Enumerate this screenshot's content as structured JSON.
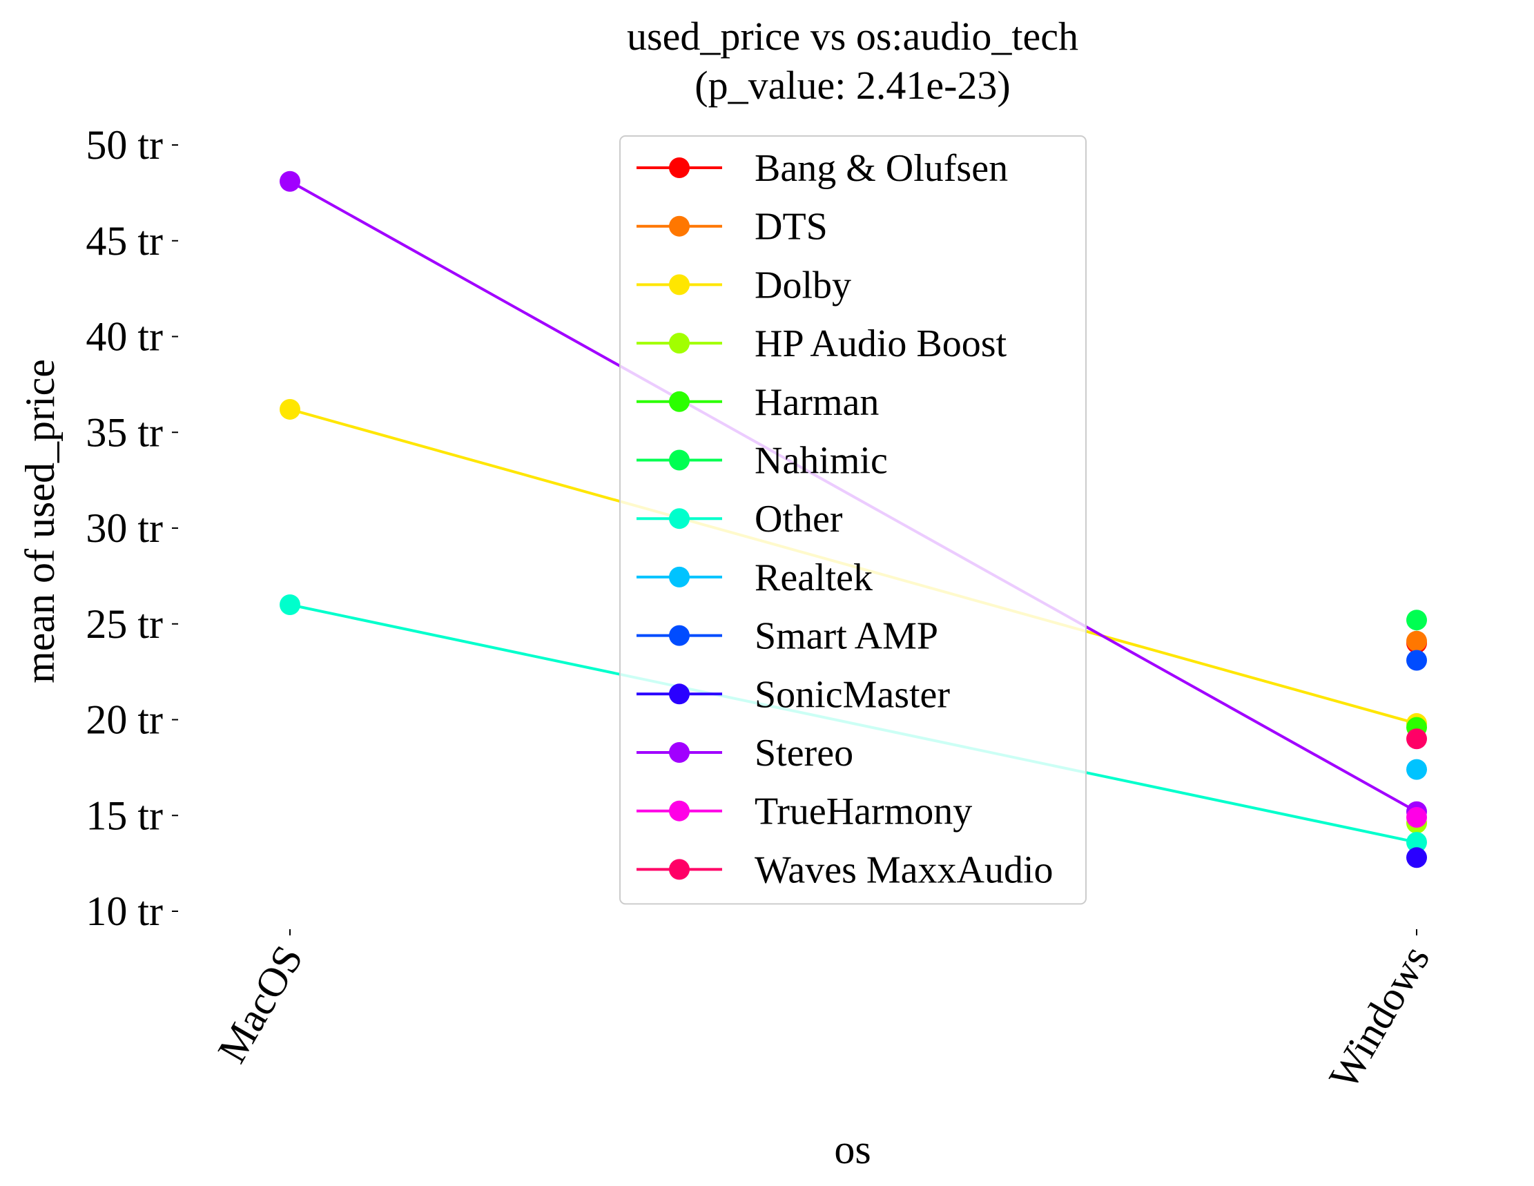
{
  "chart_data": {
    "type": "line",
    "title": "used_price vs os:audio_tech",
    "subtitle": "(p_value: 2.41e-23)",
    "xlabel": "os",
    "ylabel": "mean of used_price",
    "categories": [
      "MacOS",
      "Windows"
    ],
    "ylim": [
      10,
      50
    ],
    "yticks": [
      {
        "value": 10,
        "label": "10 tr"
      },
      {
        "value": 15,
        "label": "15 tr"
      },
      {
        "value": 20,
        "label": "20 tr"
      },
      {
        "value": 25,
        "label": "25 tr"
      },
      {
        "value": 30,
        "label": "30 tr"
      },
      {
        "value": 35,
        "label": "35 tr"
      },
      {
        "value": 40,
        "label": "40 tr"
      },
      {
        "value": 45,
        "label": "45 tr"
      },
      {
        "value": 50,
        "label": "50 tr"
      }
    ],
    "grid": false,
    "legend_position": "top-center",
    "series": [
      {
        "name": "Bang & Olufsen",
        "color": "#ff0000",
        "values": [
          null,
          24.0
        ]
      },
      {
        "name": "DTS",
        "color": "#ff7700",
        "values": [
          null,
          24.1
        ]
      },
      {
        "name": "Dolby",
        "color": "#ffe600",
        "values": [
          36.2,
          19.8
        ]
      },
      {
        "name": "HP Audio Boost",
        "color": "#a2ff00",
        "values": [
          null,
          14.6
        ]
      },
      {
        "name": "Harman",
        "color": "#2bff00",
        "values": [
          null,
          19.6
        ]
      },
      {
        "name": "Nahimic",
        "color": "#00ff51",
        "values": [
          null,
          25.2
        ]
      },
      {
        "name": "Other",
        "color": "#00ffcc",
        "values": [
          26.0,
          13.6
        ]
      },
      {
        "name": "Realtek",
        "color": "#00c3ff",
        "values": [
          null,
          17.4
        ]
      },
      {
        "name": "Smart AMP",
        "color": "#004cff",
        "values": [
          null,
          23.1
        ]
      },
      {
        "name": "SonicMaster",
        "color": "#2a00ff",
        "values": [
          null,
          12.8
        ]
      },
      {
        "name": "Stereo",
        "color": "#a100ff",
        "values": [
          48.1,
          15.2
        ]
      },
      {
        "name": "TrueHarmony",
        "color": "#ff00e6",
        "values": [
          null,
          14.9
        ]
      },
      {
        "name": "Waves MaxxAudio",
        "color": "#ff0066",
        "values": [
          null,
          19.0
        ]
      }
    ]
  }
}
